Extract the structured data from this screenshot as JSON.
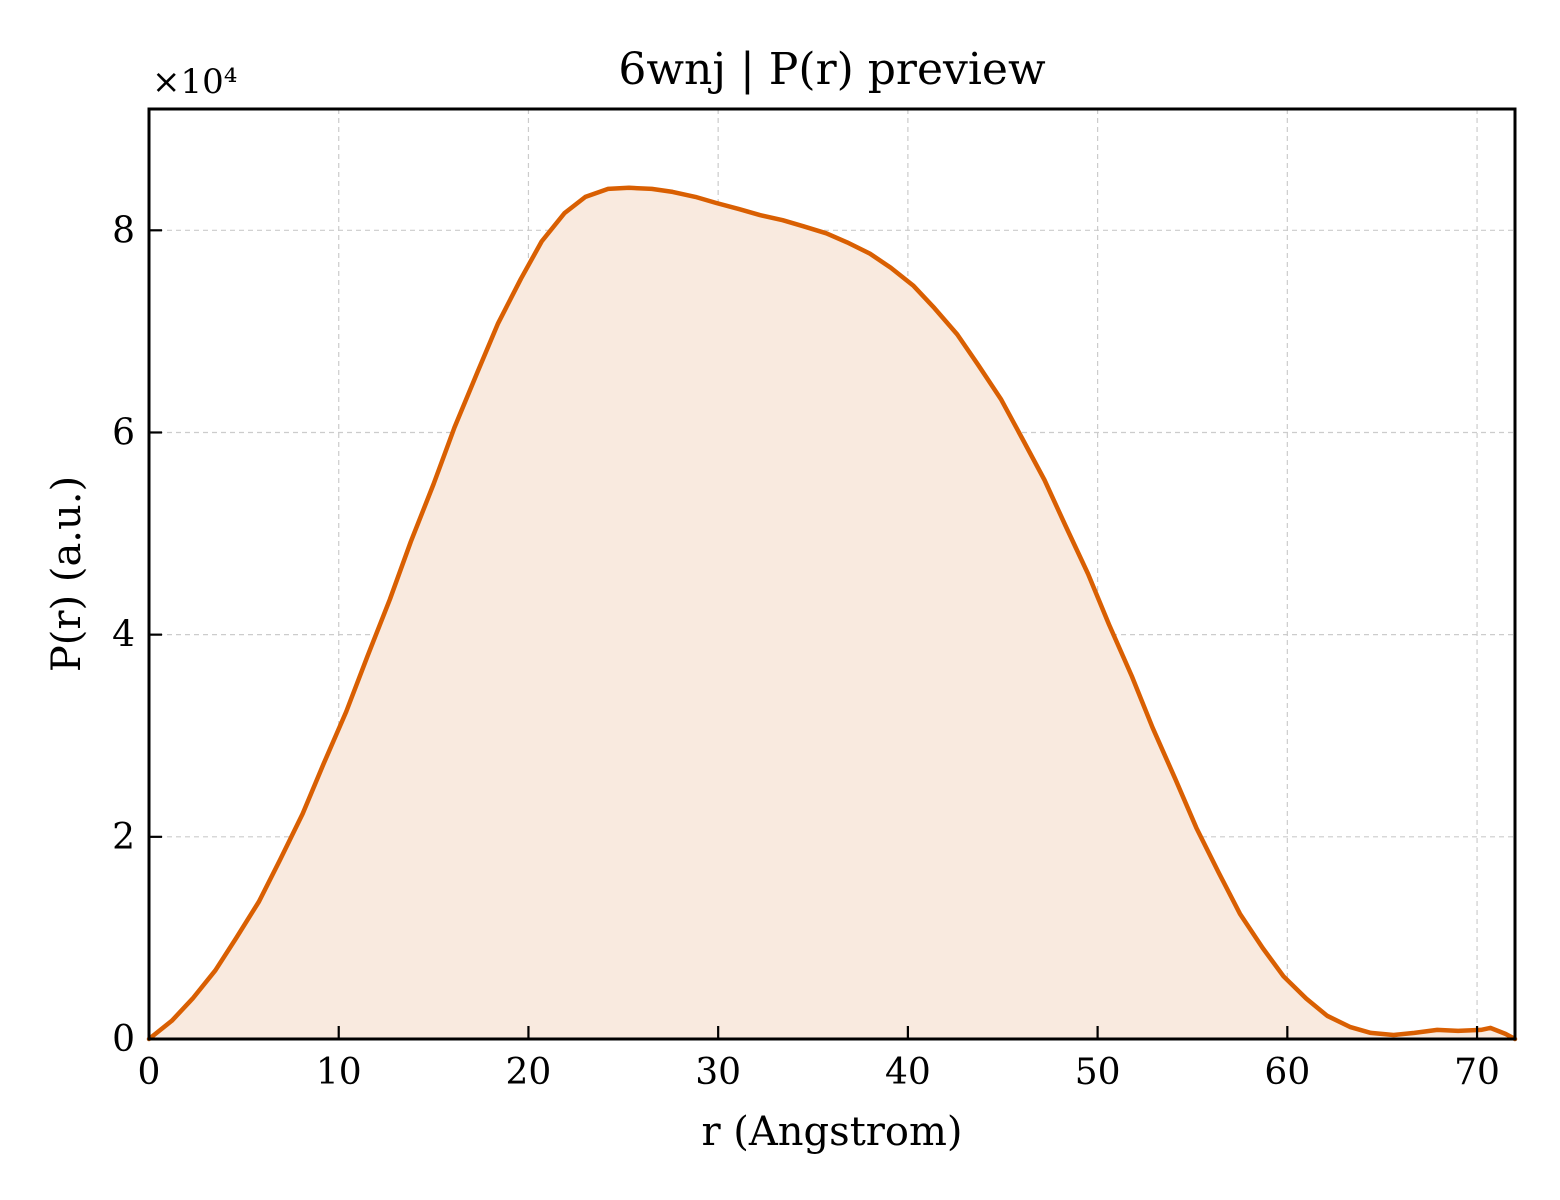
{
  "chart_data": {
    "type": "area",
    "title": "6wnj | P(r) preview",
    "xlabel": "r (Angstrom)",
    "ylabel": "P(r) (a.u.)",
    "y_offset_label": "×10⁴",
    "xlim": [
      0,
      72
    ],
    "ylim": [
      0,
      92000
    ],
    "x_ticks": [
      0,
      10,
      20,
      30,
      40,
      50,
      60,
      70
    ],
    "y_ticks": [
      0,
      2,
      4,
      6,
      8
    ],
    "y_tick_scale": 10000,
    "grid": true,
    "legend": "none",
    "colors": {
      "line": "#d95f02",
      "fill": "#f9eadf"
    },
    "series": [
      {
        "x": [
          0,
          1.2,
          2.3,
          3.5,
          4.6,
          5.8,
          6.9,
          8.1,
          9.2,
          10.4,
          11.5,
          12.7,
          13.8,
          15.0,
          16.1,
          17.3,
          18.4,
          19.6,
          20.7,
          21.9,
          23.0,
          24.2,
          25.3,
          26.5,
          27.6,
          28.8,
          29.9,
          31.1,
          32.2,
          33.4,
          34.5,
          35.7,
          36.8,
          38.0,
          39.1,
          40.3,
          41.4,
          42.6,
          43.7,
          44.9,
          46.0,
          47.2,
          48.3,
          49.5,
          50.6,
          51.8,
          52.9,
          54.1,
          55.2,
          56.4,
          57.5,
          58.7,
          59.8,
          61.0,
          62.1,
          63.3,
          64.4,
          65.6,
          66.7,
          67.9,
          69.0,
          70.2,
          70.7,
          71.5,
          72.0
        ],
        "y": [
          0,
          1800,
          4000,
          6800,
          10000,
          13600,
          17700,
          22300,
          27200,
          32400,
          37800,
          43500,
          49200,
          54900,
          60500,
          65900,
          70800,
          75200,
          78900,
          81700,
          83300,
          84100,
          84200,
          84100,
          83800,
          83300,
          82700,
          82100,
          81500,
          81000,
          80400,
          79700,
          78800,
          77700,
          76300,
          74500,
          72300,
          69700,
          66700,
          63300,
          59500,
          55300,
          50800,
          46000,
          41000,
          35900,
          30800,
          25700,
          20900,
          16400,
          12400,
          9000,
          6200,
          4000,
          2300,
          1200,
          600,
          400,
          600,
          900,
          800,
          900,
          1100,
          500,
          0
        ]
      }
    ]
  }
}
